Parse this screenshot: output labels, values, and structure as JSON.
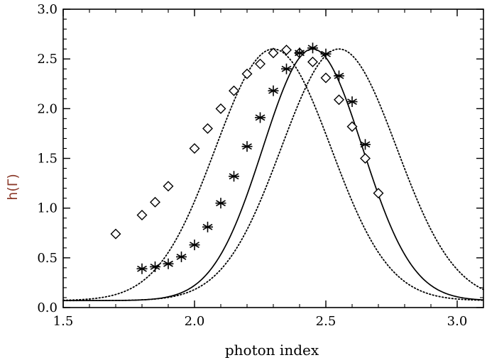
{
  "chart_data": {
    "type": "scatter",
    "xlabel": "photon index",
    "ylabel": "h(Γ)",
    "ylabel_color": "#8b3a2a",
    "xlim": [
      1.5,
      3.1
    ],
    "ylim": [
      0.0,
      3.0
    ],
    "xticks": [
      1.5,
      2.0,
      2.5,
      3.0
    ],
    "xtick_labels": [
      "1.5",
      "2.0",
      "2.5",
      "3.0"
    ],
    "yticks": [
      0.0,
      0.5,
      1.0,
      1.5,
      2.0,
      2.5,
      3.0
    ],
    "ytick_labels": [
      "0.0",
      "0.5",
      "1.0",
      "1.5",
      "2.0",
      "2.5",
      "3.0"
    ],
    "grid": false,
    "legend": "none",
    "series": [
      {
        "marker": "diamond",
        "x": [
          1.7,
          1.8,
          1.85,
          1.9,
          2.0,
          2.05,
          2.1,
          2.15,
          2.2,
          2.25,
          2.3,
          2.35,
          2.4,
          2.45,
          2.5,
          2.55,
          2.6,
          2.65,
          2.7
        ],
        "y": [
          0.74,
          0.93,
          1.06,
          1.22,
          1.6,
          1.8,
          2.0,
          2.18,
          2.35,
          2.45,
          2.56,
          2.59,
          2.56,
          2.47,
          2.31,
          2.09,
          1.82,
          1.5,
          1.15
        ]
      },
      {
        "marker": "asterisk",
        "x": [
          1.8,
          1.85,
          1.9,
          1.95,
          2.0,
          2.05,
          2.1,
          2.15,
          2.2,
          2.25,
          2.3,
          2.35,
          2.4,
          2.45,
          2.5,
          2.55,
          2.6,
          2.65
        ],
        "y": [
          0.39,
          0.41,
          0.44,
          0.51,
          0.63,
          0.81,
          1.05,
          1.32,
          1.62,
          1.91,
          2.18,
          2.4,
          2.56,
          2.61,
          2.55,
          2.33,
          2.07,
          1.64
        ]
      }
    ],
    "curves": [
      {
        "style": "solid",
        "center": 2.45,
        "peak": 2.6,
        "base": 0.07,
        "sigma": 0.19
      },
      {
        "style": "dotted",
        "center": 2.3,
        "peak": 2.6,
        "base": 0.07,
        "sigma": 0.22
      },
      {
        "style": "dotted",
        "center": 2.55,
        "peak": 2.6,
        "base": 0.07,
        "sigma": 0.22
      }
    ]
  }
}
